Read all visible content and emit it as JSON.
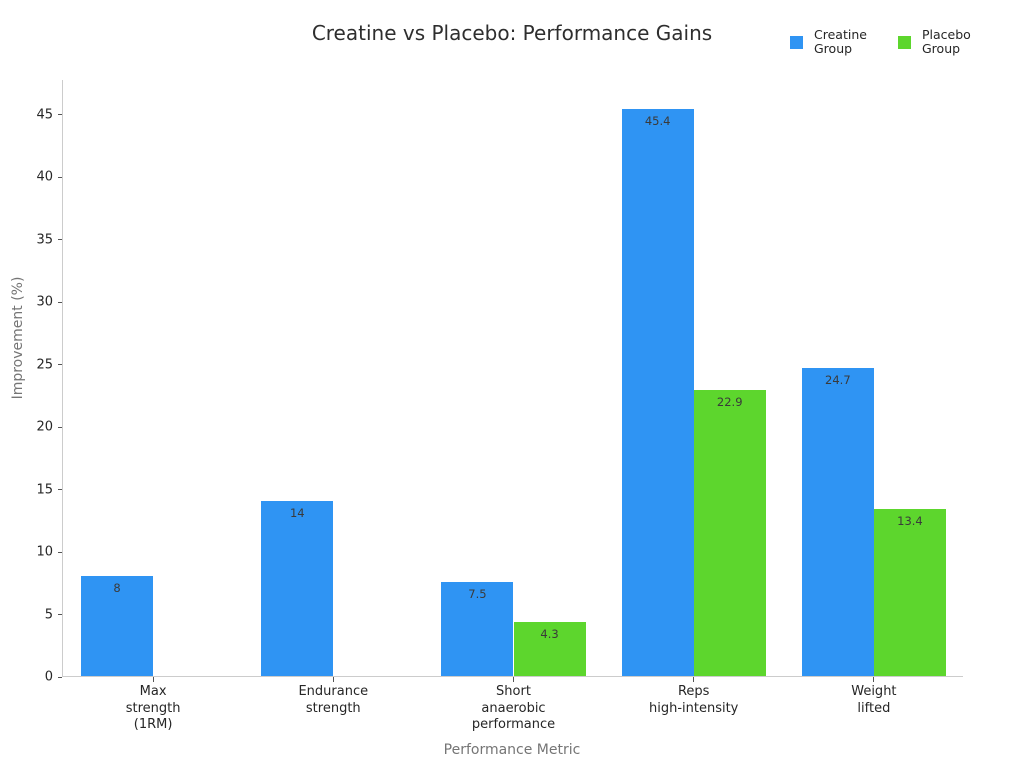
{
  "chart_data": {
    "type": "bar",
    "title": "Creatine vs Placebo: Performance Gains",
    "xlabel": "Performance Metric",
    "ylabel": "Improvement (%)",
    "categories": [
      "Max\nstrength\n(1RM)",
      "Endurance\nstrength",
      "Short\nanaerobic\nperformance",
      "Reps\nhigh-intensity",
      "Weight\nlifted"
    ],
    "series": [
      {
        "name": "Creatine Group",
        "color": "#2F94F3",
        "values": [
          8,
          14,
          7.5,
          45.4,
          24.7
        ]
      },
      {
        "name": "Placebo Group",
        "color": "#5DD62D",
        "values": [
          0,
          0,
          4.3,
          22.9,
          13.4
        ]
      }
    ],
    "value_labels": {
      "creatine": [
        "8",
        "14",
        "7.5",
        "45.4",
        "24.7"
      ],
      "placebo": [
        "",
        "",
        "4.3",
        "22.9",
        "13.4"
      ]
    },
    "yticks": [
      0,
      5,
      10,
      15,
      20,
      25,
      30,
      35,
      40,
      45
    ],
    "ylim": [
      0,
      47.8
    ],
    "grid": false,
    "legend_position": "top-right",
    "background_color": "#FFFFFF",
    "axis_spine_color": "#CCCCCC",
    "tick_label_color": "#262626",
    "axis_label_color": "#757575",
    "value_label_color": "#3A3A3A"
  }
}
